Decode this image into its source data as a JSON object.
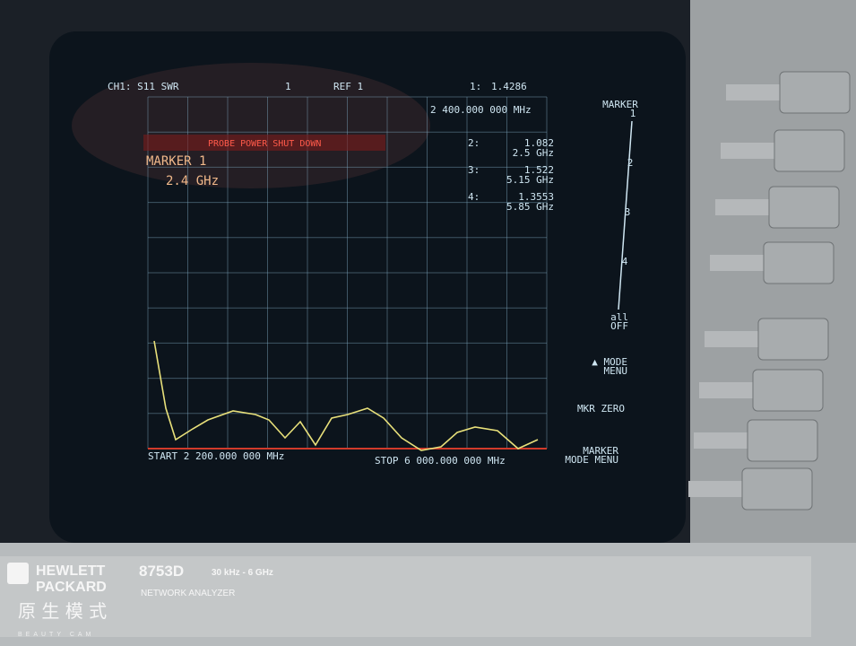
{
  "header": {
    "channel": "CH1: S11 SWR",
    "scale": "1",
    "reference": "REF 1"
  },
  "warning": "PROBE POWER SHUT DOWN",
  "active_marker": {
    "name": "MARKER 1",
    "frequency": "2.4 GHz"
  },
  "markers": [
    {
      "label": "1:",
      "value": "1.4286",
      "frequency": "2 400.000 000 MHz"
    },
    {
      "label": "2:",
      "value": "1.082",
      "frequency": "2.5 GHz"
    },
    {
      "label": "3:",
      "value": "1.522",
      "frequency": "5.15 GHz"
    },
    {
      "label": "4:",
      "value": "1.3553",
      "frequency": "5.85 GHz"
    }
  ],
  "footer": {
    "start": "START 2 200.000 000 MHz",
    "stop": "STOP 6 000.000 000 MHz"
  },
  "softkeys": {
    "title": "MARKER",
    "items": [
      {
        "lines": [
          "1"
        ]
      },
      {
        "lines": [
          "2"
        ]
      },
      {
        "lines": [
          "3"
        ]
      },
      {
        "lines": [
          "4"
        ]
      },
      {
        "lines": [
          "all",
          "OFF"
        ]
      },
      {
        "lines": [
          "▲ MODE",
          "MENU"
        ]
      },
      {
        "lines": [
          "MKR ZERO"
        ]
      },
      {
        "lines": [
          "MARKER",
          "MODE MENU"
        ]
      }
    ]
  },
  "instrument": {
    "brand_line1": "HEWLETT",
    "brand_line2": "PACKARD",
    "model": "8753D",
    "range": "30 kHz - 6 GHz",
    "description": "NETWORK ANALYZER"
  },
  "watermark": {
    "text": "原 生 模 式",
    "subtext": "BEAUTY CAM"
  }
}
